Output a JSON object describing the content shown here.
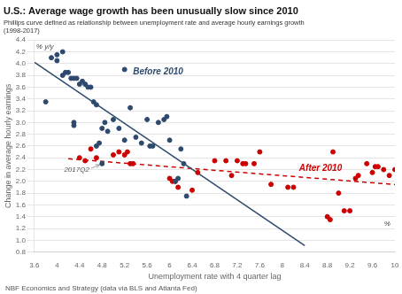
{
  "chart_data": {
    "type": "scatter",
    "title": "U.S.: Average wage growth has been unusually slow since 2010",
    "subtitle": "Phillips curve defined as relationship between unemployment rate and average hourly earnings growth\n(1998-2017)",
    "xlabel": "Unemployment rate with 4 quarter lag",
    "ylabel": "Change in average hourly earnings",
    "source": "NBF Economics and Strategy (data via BLS and Atlanta Fed)",
    "xlim": [
      3.6,
      10.0
    ],
    "ylim": [
      0.8,
      4.4
    ],
    "xticks": [
      3.6,
      4,
      4.4,
      4.8,
      5.2,
      5.6,
      6,
      6.4,
      6.8,
      7.2,
      7.6,
      8,
      8.4,
      8.8,
      9.2,
      9.6,
      10
    ],
    "yticks": [
      0.8,
      {
        "value": 1.0,
        "label": "1.0"
      },
      1.2,
      1.4,
      1.6,
      1.8,
      {
        "value": 2.0,
        "label": "2.0"
      },
      2.2,
      2.4,
      2.6,
      2.8,
      {
        "value": 3.0,
        "label": "3.0"
      },
      3.2,
      3.4,
      3.6,
      3.8,
      {
        "value": 4.0,
        "label": "4.0"
      },
      4.2,
      4.4
    ],
    "grid": "y",
    "series": [
      {
        "type": "scatter",
        "color": "#2d4a6e",
        "x": [
          3.9,
          4.0,
          4.1,
          4.15,
          4.2,
          4.25,
          4.3,
          4.35,
          4.4,
          4.45,
          4.5,
          4.55,
          4.6,
          4.65,
          4.7,
          4.75,
          4.8,
          4.85,
          4.9,
          5.0,
          5.1,
          5.2,
          5.3,
          5.4,
          5.5,
          5.6,
          5.65,
          5.7,
          5.8,
          5.9,
          5.95,
          6.0,
          6.1,
          6.15,
          6.2,
          6.25,
          6.3,
          3.8,
          4.0,
          4.1,
          4.3,
          4.3,
          4.7,
          4.8,
          5.2
        ],
        "values": [
          4.1,
          4.15,
          4.2,
          3.85,
          3.85,
          3.75,
          3.75,
          3.75,
          3.65,
          3.7,
          3.65,
          3.6,
          3.6,
          3.35,
          3.3,
          2.65,
          2.9,
          3.0,
          2.85,
          3.05,
          2.9,
          2.7,
          3.25,
          2.75,
          2.65,
          3.05,
          2.6,
          2.6,
          3.0,
          3.05,
          3.1,
          2.7,
          2.0,
          2.05,
          2.55,
          2.3,
          1.75,
          3.35,
          4.05,
          3.8,
          2.95,
          3.0,
          2.6,
          2.3,
          3.9
        ]
      },
      {
        "type": "scatter",
        "color": "#cc0000",
        "x": [
          4.4,
          4.5,
          4.6,
          4.7,
          5.0,
          5.1,
          5.2,
          5.25,
          5.3,
          5.35,
          6.0,
          6.05,
          6.1,
          6.15,
          6.4,
          6.5,
          6.8,
          7.0,
          7.1,
          7.2,
          7.3,
          7.35,
          7.5,
          7.6,
          7.8,
          8.1,
          8.2,
          8.8,
          8.85,
          8.9,
          9.0,
          9.1,
          9.2,
          9.3,
          9.35,
          9.5,
          9.6,
          9.65,
          9.7,
          9.8,
          9.9,
          10.0
        ],
        "values": [
          2.4,
          2.35,
          2.55,
          2.4,
          2.45,
          2.5,
          2.45,
          2.5,
          2.3,
          2.3,
          2.05,
          2.0,
          2.0,
          1.9,
          1.85,
          2.15,
          2.35,
          2.35,
          2.1,
          2.35,
          2.3,
          2.3,
          2.3,
          2.5,
          1.95,
          1.9,
          1.9,
          1.4,
          1.35,
          2.5,
          1.8,
          1.5,
          1.5,
          2.05,
          2.1,
          2.3,
          2.15,
          2.25,
          2.25,
          2.2,
          2.1,
          2.2
        ]
      },
      {
        "type": "line",
        "color": "#2d4a6e",
        "line_style": "solid",
        "x": [
          3.6,
          8.4
        ],
        "values": [
          4.0223,
          0.9103
        ]
      },
      {
        "type": "line",
        "color": "#cc0000",
        "line_style": "dashed",
        "x": [
          4.2,
          10.0
        ],
        "values": [
          2.3843,
          1.9458
        ]
      }
    ],
    "annotations": [
      {
        "text": "Before 2010",
        "x": 5.35,
        "y": 3.82,
        "color": "#2d4a6e"
      },
      {
        "text": "After 2010",
        "x": 8.3,
        "y": 2.18,
        "color": "#cc0000"
      },
      {
        "text": "2017Q2",
        "x": 4.35,
        "y": 2.16,
        "arrow_to": [
          4.8,
          2.3
        ],
        "color": "#555555"
      },
      {
        "text": "% y/y",
        "x": 3.63,
        "y": 4.35,
        "color": "#444444"
      },
      {
        "text": "%",
        "x": 9.92,
        "y": 1.24,
        "color": "#444444"
      }
    ]
  }
}
